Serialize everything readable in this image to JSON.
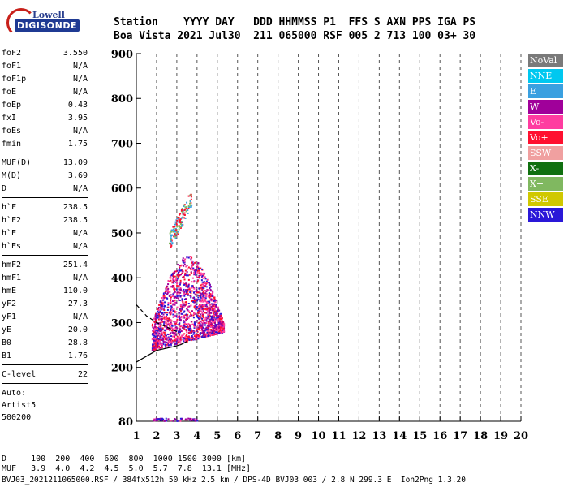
{
  "logo": {
    "line1": "Lowell",
    "line2": "DIGISONDE"
  },
  "header": {
    "row1": "Station    YYYY DAY   DDD HHMMSS P1  FFS S AXN PPS IGA PS",
    "row2": "Boa Vista 2021 Jul30  211 065000 RSF 005 2 713 100 03+ 30"
  },
  "params": [
    {
      "name": "foF2",
      "value": "3.550"
    },
    {
      "name": "foF1",
      "value": "N/A"
    },
    {
      "name": "foF1p",
      "value": "N/A"
    },
    {
      "name": "foE",
      "value": "N/A"
    },
    {
      "name": "foEp",
      "value": "0.43"
    },
    {
      "name": "fxI",
      "value": "3.95"
    },
    {
      "name": "foEs",
      "value": "N/A"
    },
    {
      "name": "fmin",
      "value": "1.75"
    },
    {
      "sep": true
    },
    {
      "name": "MUF(D)",
      "value": "13.09"
    },
    {
      "name": "M(D)",
      "value": "3.69"
    },
    {
      "name": "D",
      "value": "N/A"
    },
    {
      "sep": true
    },
    {
      "name": "h`F",
      "value": "238.5"
    },
    {
      "name": "h`F2",
      "value": "238.5"
    },
    {
      "name": "h`E",
      "value": "N/A"
    },
    {
      "name": "h`Es",
      "value": "N/A"
    },
    {
      "sep": true
    },
    {
      "name": "hmF2",
      "value": "251.4"
    },
    {
      "name": "hmF1",
      "value": "N/A"
    },
    {
      "name": "hmE",
      "value": "110.0"
    },
    {
      "name": "yF2",
      "value": "27.3"
    },
    {
      "name": "yF1",
      "value": "N/A"
    },
    {
      "name": "yE",
      "value": "20.0"
    },
    {
      "name": "B0",
      "value": "28.8"
    },
    {
      "name": "B1",
      "value": "1.76"
    },
    {
      "sep": true
    },
    {
      "name": "C-level",
      "value": "22"
    },
    {
      "sep": true
    }
  ],
  "auto": {
    "line1": "Auto:",
    "line2": "Artist5",
    "line3": "500200"
  },
  "legend": [
    {
      "label": "NoVal",
      "color": "#7a7a7a"
    },
    {
      "label": "NNE",
      "color": "#00c8f0"
    },
    {
      "label": "E",
      "color": "#3aa0e0"
    },
    {
      "label": "W",
      "color": "#a0009a"
    },
    {
      "label": "Vo-",
      "color": "#ff3ca0"
    },
    {
      "label": "Vo+",
      "color": "#ff1030"
    },
    {
      "label": "SSW",
      "color": "#f0a0a0"
    },
    {
      "label": "X-",
      "color": "#107010"
    },
    {
      "label": "X+",
      "color": "#80b860"
    },
    {
      "label": "SSE",
      "color": "#d0c800"
    },
    {
      "label": "NNW",
      "color": "#2a18d8"
    }
  ],
  "bottom": {
    "row1": "D     100  200  400  600  800  1000 1500 3000 [km]",
    "row2": "MUF   3.9  4.0  4.2  4.5  5.0  5.7  7.8  13.1 [MHz]",
    "row3": "BVJ03_2021211065000.RSF / 384fx512h 50 kHz 2.5 km / DPS-4D BVJ03 003 / 2.8 N 299.3 E  Ion2Png 1.3.20"
  },
  "chart_data": {
    "type": "scatter",
    "xlim": [
      1,
      20
    ],
    "ylim": [
      80,
      900
    ],
    "xticks": [
      1,
      2,
      3,
      4,
      5,
      6,
      7,
      8,
      9,
      10,
      11,
      12,
      13,
      14,
      15,
      16,
      17,
      18,
      19,
      20
    ],
    "yticks": [
      80,
      200,
      300,
      400,
      500,
      600,
      700,
      800,
      900
    ],
    "grid": true,
    "clusters": [
      {
        "name": "main F2 trace",
        "fmin": 1.75,
        "fmax": 5.3,
        "hmin": 238,
        "hmax": 480,
        "colors": [
          "W",
          "NNW",
          "Vo+",
          "Vo-"
        ]
      },
      {
        "name": "F2 multi-hop",
        "fmin": 2.6,
        "fmax": 3.7,
        "hmin": 470,
        "hmax": 620,
        "colors": [
          "E",
          "X+",
          "Vo+"
        ]
      },
      {
        "name": "E layer echoes",
        "fmin": 1.8,
        "fmax": 4.0,
        "hmin": 82,
        "hmax": 88,
        "colors": [
          "W",
          "Vo-",
          "NNW"
        ]
      }
    ],
    "profile_curve": [
      {
        "f": 1.0,
        "h": 212
      },
      {
        "f": 2.0,
        "h": 238
      },
      {
        "f": 2.8,
        "h": 246
      },
      {
        "f": 3.2,
        "h": 251
      },
      {
        "f": 3.5,
        "h": 258
      }
    ],
    "dashed_curve": [
      {
        "f": 1.0,
        "h": 340
      },
      {
        "f": 1.5,
        "h": 315
      },
      {
        "f": 2.0,
        "h": 300
      },
      {
        "f": 2.5,
        "h": 290
      },
      {
        "f": 3.0,
        "h": 280
      }
    ]
  }
}
